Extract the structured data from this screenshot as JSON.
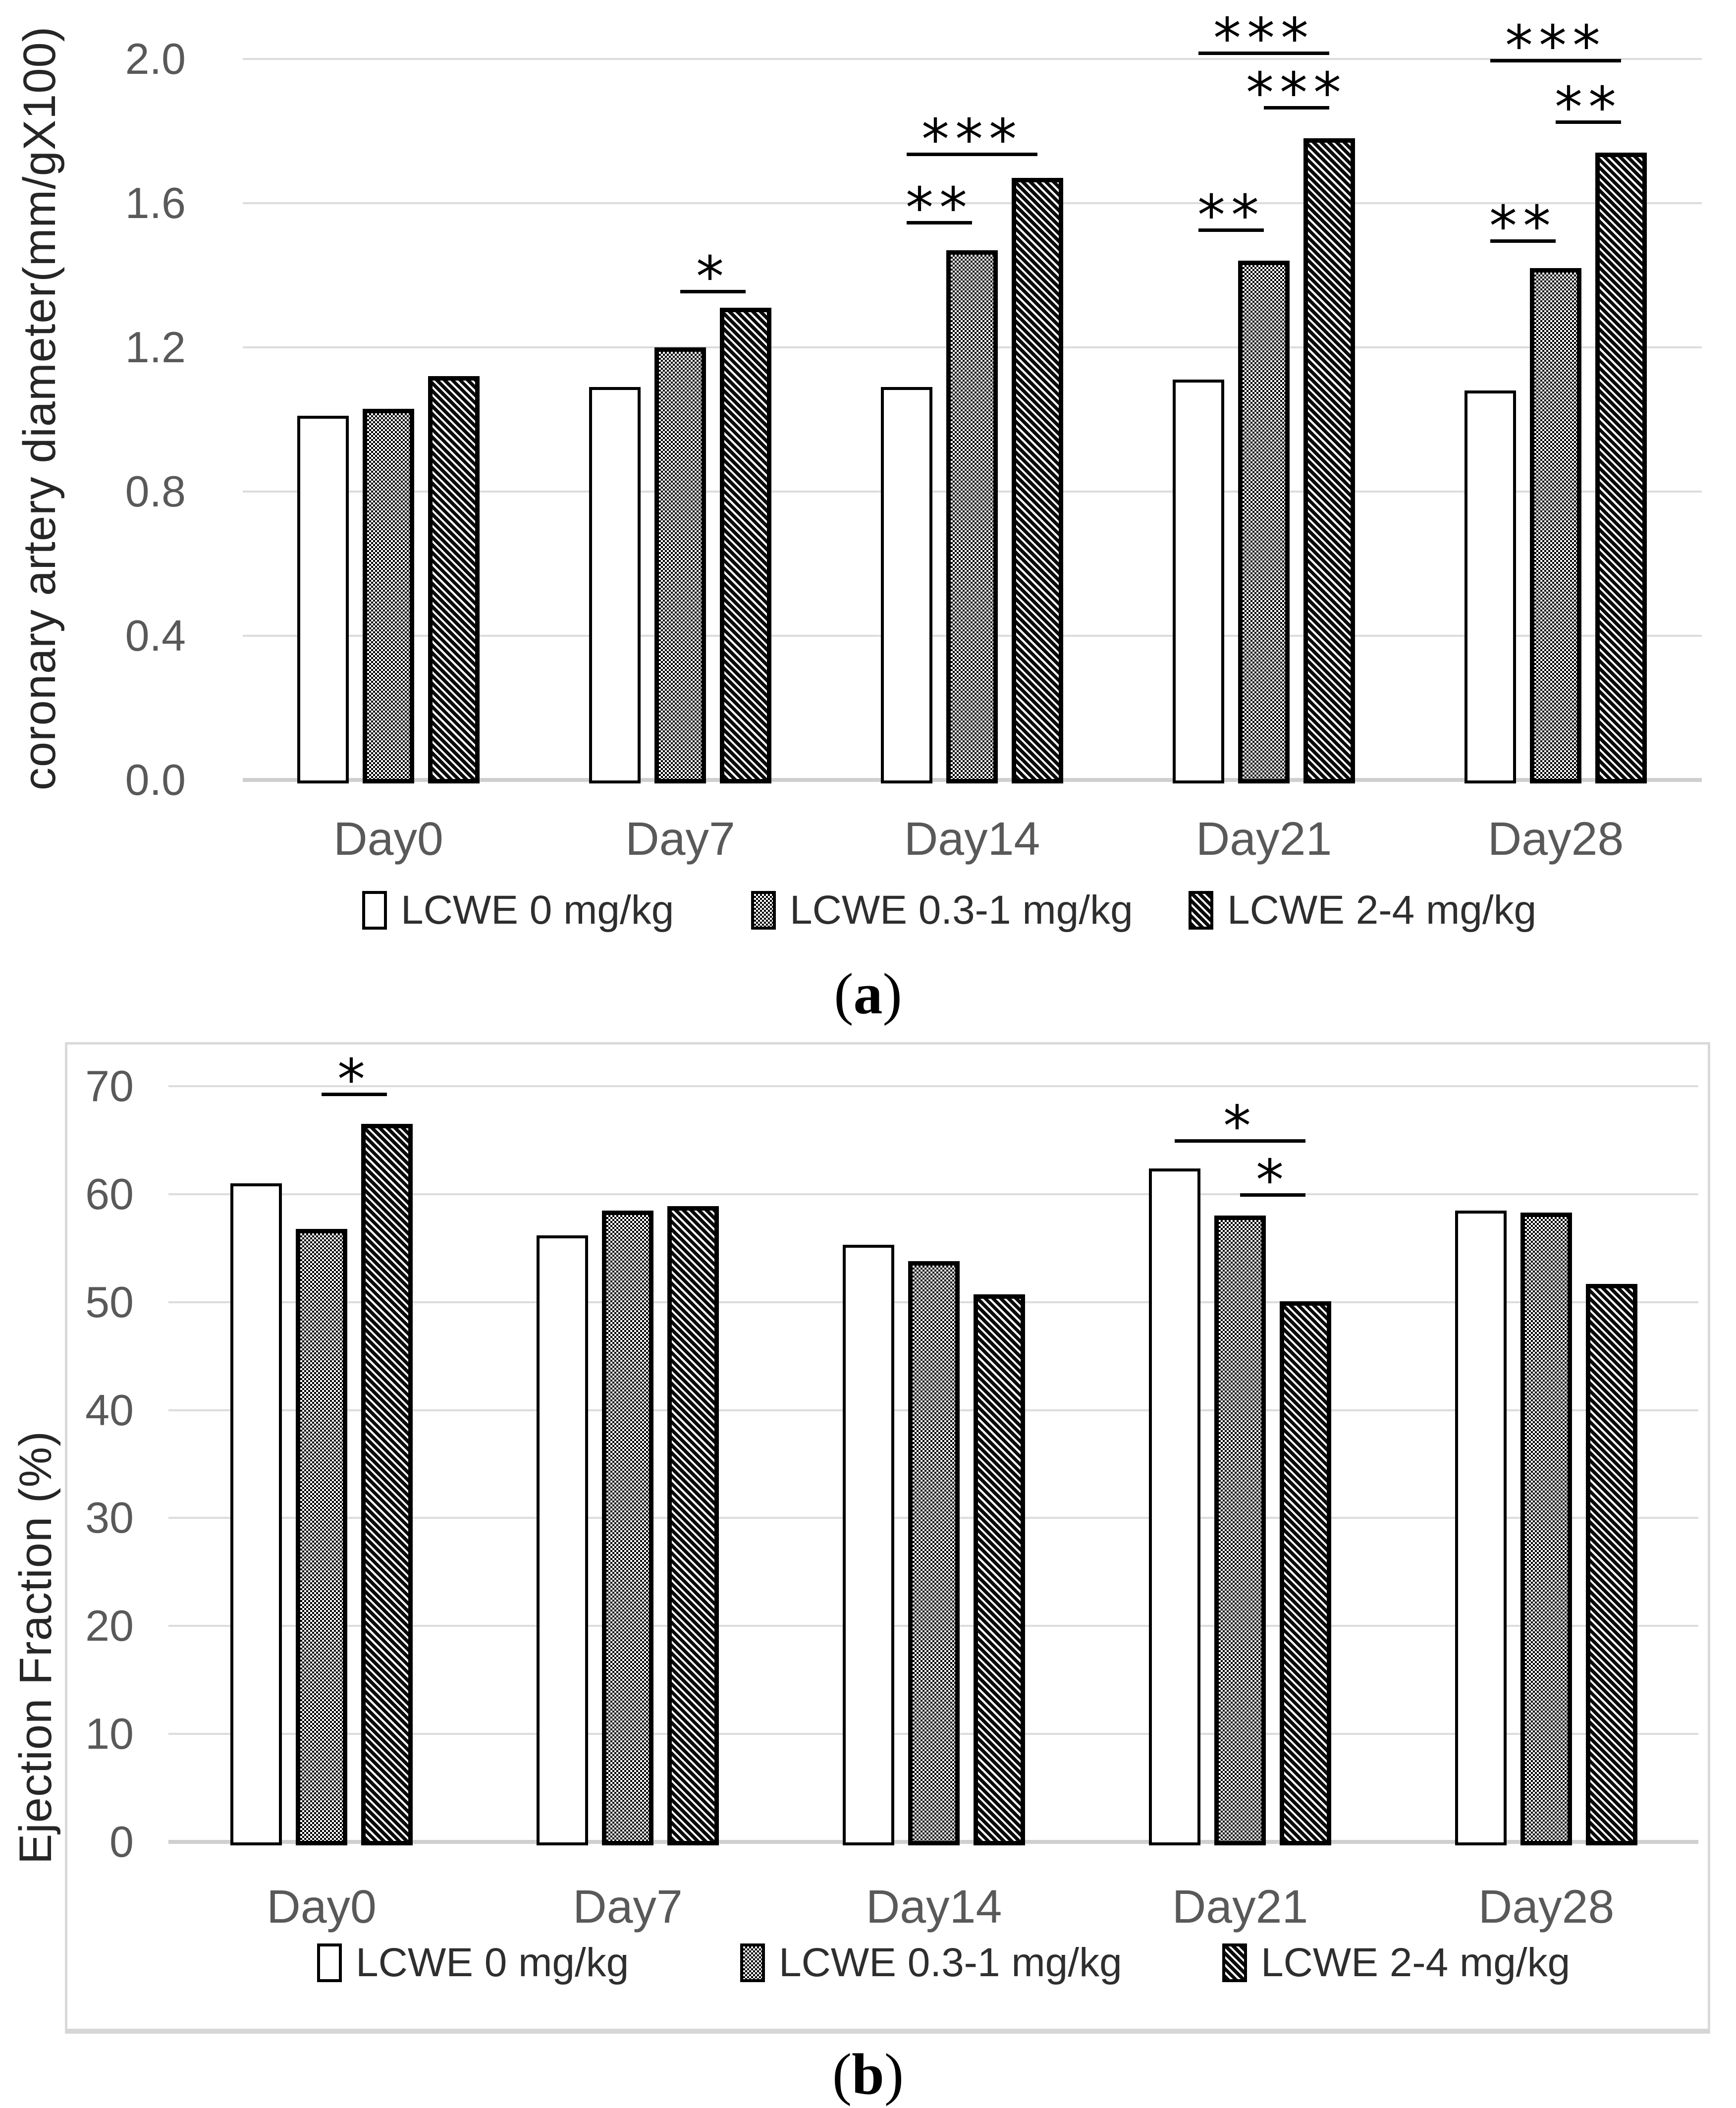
{
  "colors": {
    "grid": "#dcdcdc",
    "axis_line": "#cfcfcf",
    "tick_text": "#595959",
    "axis_title_text": "#262626",
    "legend_text": "#2e2e2e",
    "bar_border": "#000000",
    "panel_border": "#d9d9d9"
  },
  "chart_data": [
    {
      "type": "bar",
      "panel_label": "a",
      "ylabel": "coronary artery diameter(mm/gX100)",
      "xlabel": "",
      "ylim": [
        0,
        2.0
      ],
      "yticks": [
        "0.0",
        "0.4",
        "0.8",
        "1.2",
        "1.6",
        "2.0"
      ],
      "grid": true,
      "legend_position": "bottom",
      "categories": [
        "Day0",
        "Day7",
        "Day14",
        "Day21",
        "Day28"
      ],
      "series": [
        {
          "name": "LCWE 0 mg/kg",
          "pattern": "plain",
          "values": [
            1.01,
            1.09,
            1.09,
            1.11,
            1.08
          ]
        },
        {
          "name": "LCWE 0.3-1 mg/kg",
          "pattern": "checker",
          "values": [
            1.03,
            1.2,
            1.47,
            1.44,
            1.42
          ]
        },
        {
          "name": "LCWE 2-4 mg/kg",
          "pattern": "stripe",
          "values": [
            1.12,
            1.31,
            1.67,
            1.78,
            1.74
          ]
        }
      ],
      "annotations": [
        {
          "category": "Day7",
          "label": "*",
          "from": 1,
          "to": 2,
          "y": 1.36
        },
        {
          "category": "Day14",
          "label": "**",
          "from": 0,
          "to": 1,
          "y": 1.55
        },
        {
          "category": "Day14",
          "label": "***",
          "from": 0,
          "to": 2,
          "y": 1.74
        },
        {
          "category": "Day21",
          "label": "**",
          "from": 0,
          "to": 1,
          "y": 1.53
        },
        {
          "category": "Day21",
          "label": "***",
          "from": 1,
          "to": 2,
          "y": 1.87
        },
        {
          "category": "Day21",
          "label": "***",
          "from": 0,
          "to": 2,
          "y": 2.02
        },
        {
          "category": "Day28",
          "label": "**",
          "from": 0,
          "to": 1,
          "y": 1.5
        },
        {
          "category": "Day28",
          "label": "**",
          "from": 1,
          "to": 2,
          "y": 1.83
        },
        {
          "category": "Day28",
          "label": "***",
          "from": 0,
          "to": 2,
          "y": 2.0
        }
      ]
    },
    {
      "type": "bar",
      "panel_label": "b",
      "ylabel": "Ejection Fraction (%)",
      "xlabel": "",
      "ylim": [
        0,
        70
      ],
      "yticks": [
        "0",
        "10",
        "20",
        "30",
        "40",
        "50",
        "60",
        "70"
      ],
      "grid": true,
      "legend_position": "bottom",
      "categories": [
        "Day0",
        "Day7",
        "Day14",
        "Day21",
        "Day28"
      ],
      "series": [
        {
          "name": "LCWE 0 mg/kg",
          "pattern": "plain",
          "values": [
            61.0,
            56.2,
            55.3,
            62.4,
            58.5
          ]
        },
        {
          "name": "LCWE 0.3-1 mg/kg",
          "pattern": "checker",
          "values": [
            56.8,
            58.5,
            53.8,
            58.0,
            58.3
          ]
        },
        {
          "name": "LCWE 2-4 mg/kg",
          "pattern": "stripe",
          "values": [
            66.5,
            58.9,
            50.7,
            50.1,
            51.7
          ]
        }
      ],
      "annotations": [
        {
          "category": "Day0",
          "label": "*",
          "from": 1,
          "to": 2,
          "y": 69.4
        },
        {
          "category": "Day21",
          "label": "*",
          "from": 0,
          "to": 2,
          "y": 65.1
        },
        {
          "category": "Day21",
          "label": "*",
          "from": 1,
          "to": 2,
          "y": 60.1
        }
      ]
    }
  ]
}
